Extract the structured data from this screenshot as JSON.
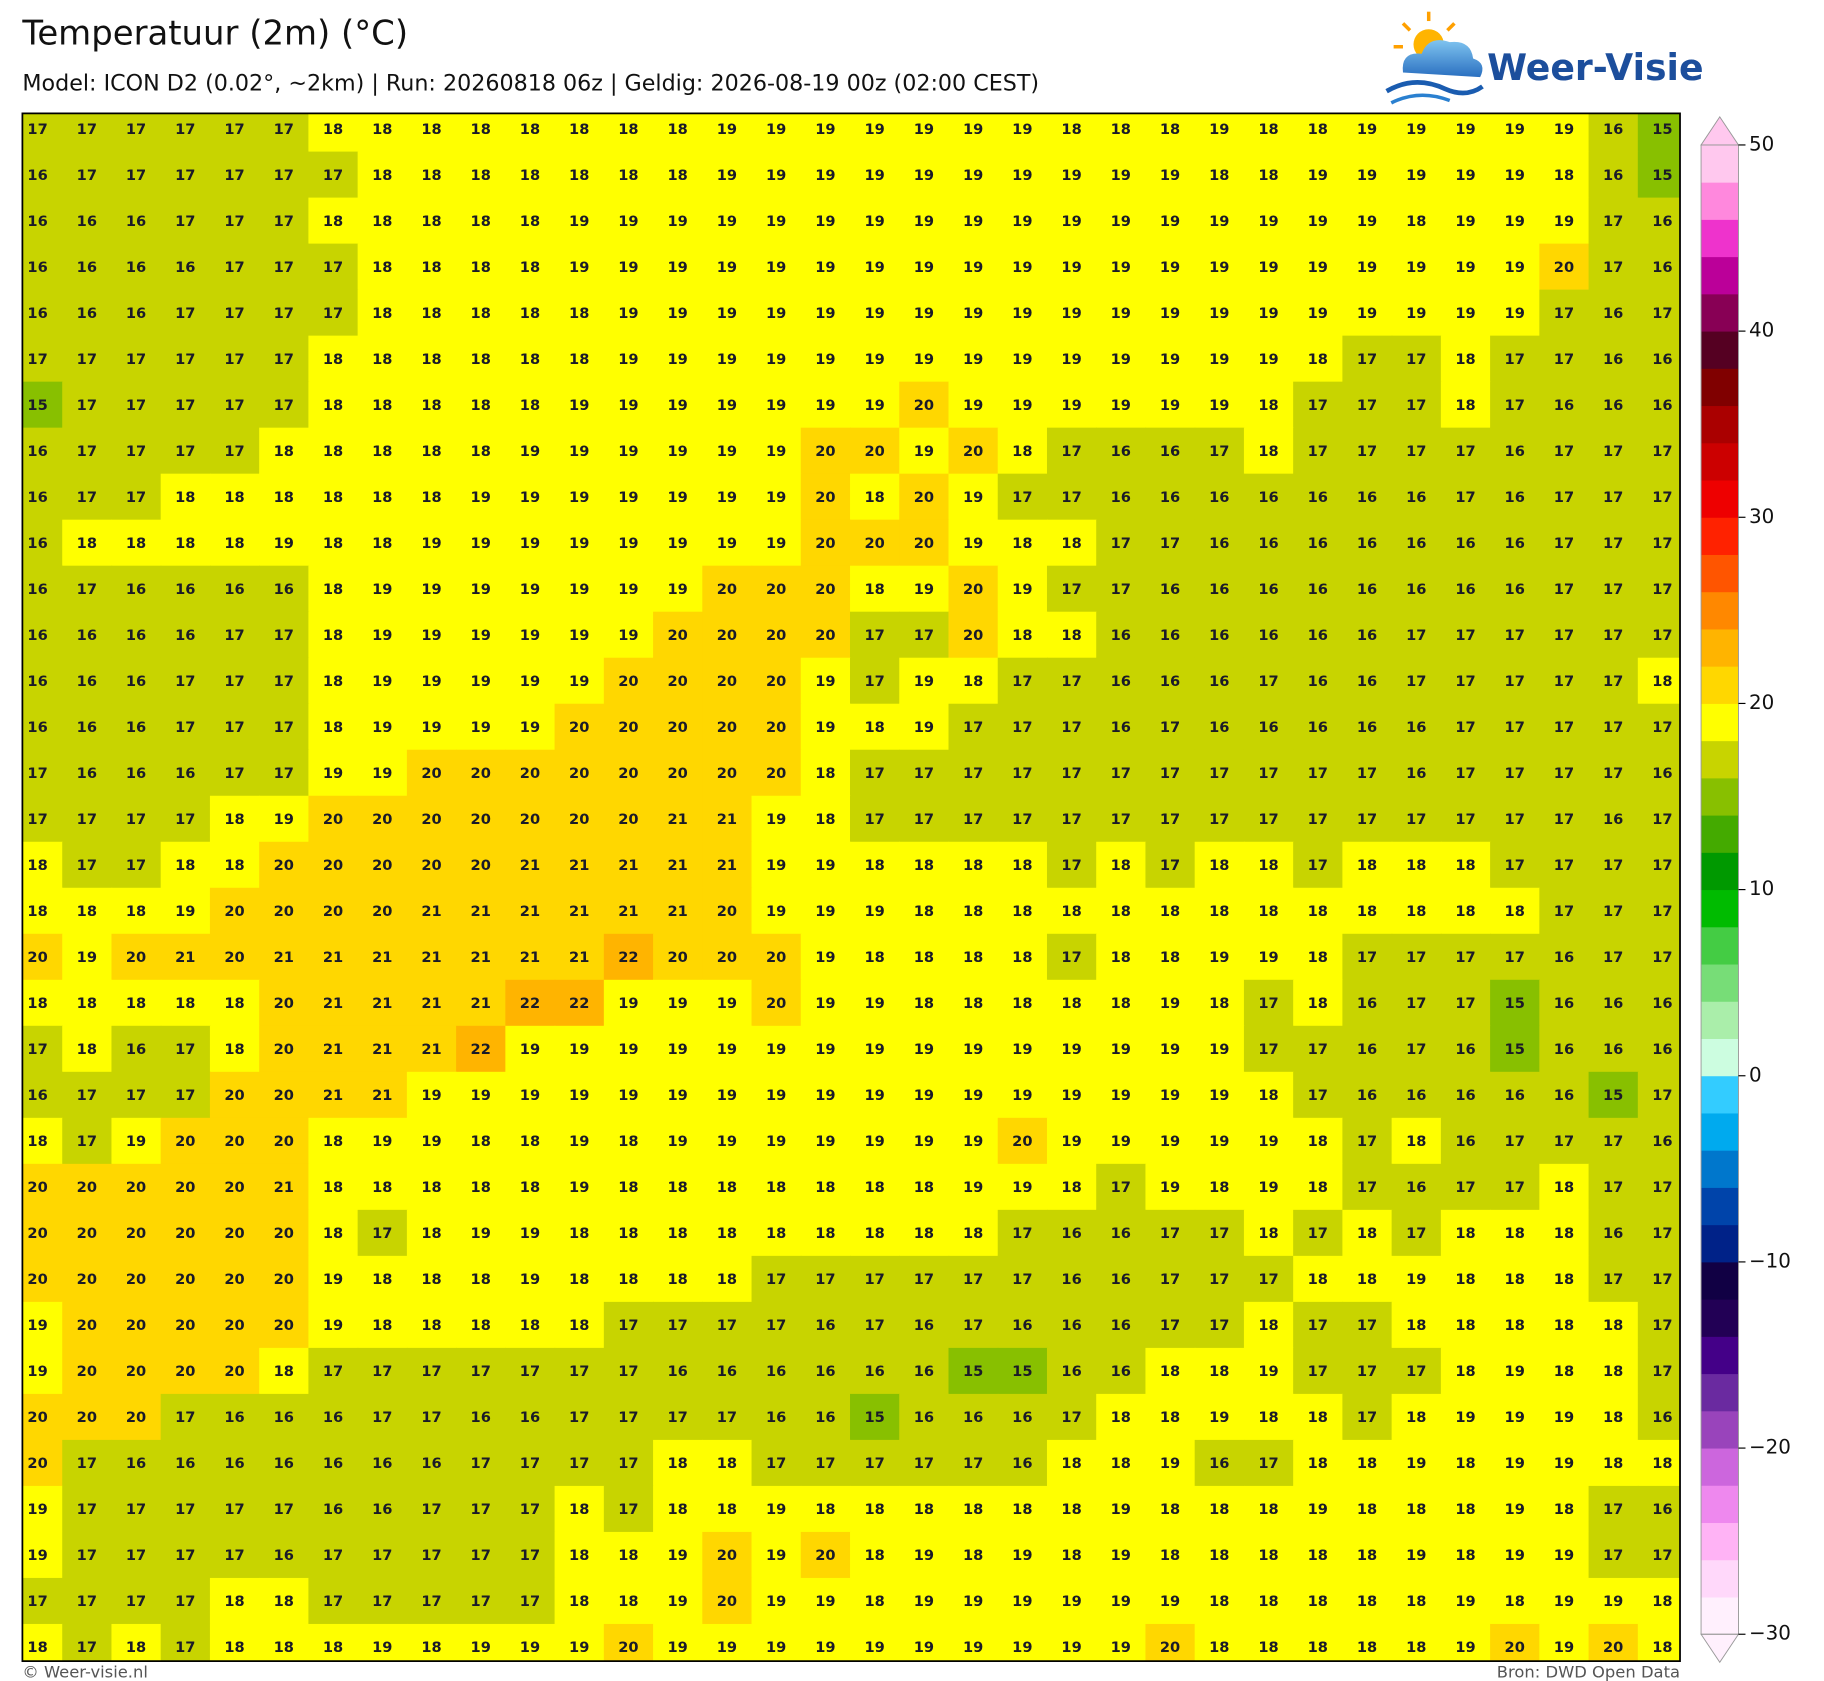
{
  "header": {
    "title": "Temperatuur (2m) (°C)",
    "subtitle": "Model: ICON D2 (0.02°, ~2km)  |  Run: 20260818 06z  |  Geldig: 2026-08-19 00z (02:00 CEST)"
  },
  "logo": "Weer-Visie",
  "grid": {
    "rows": [
      [
        17,
        17,
        17,
        17,
        17,
        17,
        18,
        18,
        18,
        18,
        18,
        18,
        18,
        18,
        19,
        19,
        19,
        19,
        19,
        19,
        19,
        18,
        18,
        18,
        19,
        18,
        18,
        19,
        19,
        19,
        19,
        19,
        16,
        15
      ],
      [
        16,
        17,
        17,
        17,
        17,
        17,
        17,
        18,
        18,
        18,
        18,
        18,
        18,
        18,
        19,
        19,
        19,
        19,
        19,
        19,
        19,
        19,
        19,
        19,
        18,
        18,
        19,
        19,
        19,
        19,
        19,
        18,
        16,
        15
      ],
      [
        16,
        16,
        16,
        17,
        17,
        17,
        18,
        18,
        18,
        18,
        18,
        19,
        19,
        19,
        19,
        19,
        19,
        19,
        19,
        19,
        19,
        19,
        19,
        19,
        19,
        19,
        19,
        19,
        18,
        19,
        19,
        19,
        17,
        16
      ],
      [
        16,
        16,
        16,
        16,
        17,
        17,
        17,
        18,
        18,
        18,
        18,
        19,
        19,
        19,
        19,
        19,
        19,
        19,
        19,
        19,
        19,
        19,
        19,
        19,
        19,
        19,
        19,
        19,
        19,
        19,
        19,
        20,
        17,
        16
      ],
      [
        16,
        16,
        16,
        17,
        17,
        17,
        17,
        18,
        18,
        18,
        18,
        18,
        19,
        19,
        19,
        19,
        19,
        19,
        19,
        19,
        19,
        19,
        19,
        19,
        19,
        19,
        19,
        19,
        19,
        19,
        19,
        17,
        16,
        17
      ],
      [
        17,
        17,
        17,
        17,
        17,
        17,
        18,
        18,
        18,
        18,
        18,
        18,
        19,
        19,
        19,
        19,
        19,
        19,
        19,
        19,
        19,
        19,
        19,
        19,
        19,
        19,
        18,
        17,
        17,
        18,
        17,
        17,
        16,
        16
      ],
      [
        15,
        17,
        17,
        17,
        17,
        17,
        18,
        18,
        18,
        18,
        18,
        19,
        19,
        19,
        19,
        19,
        19,
        19,
        20,
        19,
        19,
        19,
        19,
        19,
        19,
        18,
        17,
        17,
        17,
        18,
        17,
        16,
        16,
        16
      ],
      [
        16,
        17,
        17,
        17,
        17,
        18,
        18,
        18,
        18,
        18,
        19,
        19,
        19,
        19,
        19,
        19,
        20,
        20,
        19,
        20,
        18,
        17,
        16,
        16,
        17,
        18,
        17,
        17,
        17,
        17,
        16,
        17,
        17,
        17
      ],
      [
        16,
        17,
        17,
        18,
        18,
        18,
        18,
        18,
        18,
        19,
        19,
        19,
        19,
        19,
        19,
        19,
        20,
        18,
        20,
        19,
        17,
        17,
        16,
        16,
        16,
        16,
        16,
        16,
        16,
        17,
        16,
        17,
        17,
        17
      ],
      [
        16,
        18,
        18,
        18,
        18,
        19,
        18,
        18,
        19,
        19,
        19,
        19,
        19,
        19,
        19,
        19,
        20,
        20,
        20,
        19,
        18,
        18,
        17,
        17,
        16,
        16,
        16,
        16,
        16,
        16,
        16,
        17,
        17,
        17
      ],
      [
        16,
        17,
        16,
        16,
        16,
        16,
        18,
        19,
        19,
        19,
        19,
        19,
        19,
        19,
        20,
        20,
        20,
        18,
        19,
        20,
        19,
        17,
        17,
        16,
        16,
        16,
        16,
        16,
        16,
        16,
        16,
        17,
        17,
        17
      ],
      [
        16,
        16,
        16,
        16,
        17,
        17,
        18,
        19,
        19,
        19,
        19,
        19,
        19,
        20,
        20,
        20,
        20,
        17,
        17,
        20,
        18,
        18,
        16,
        16,
        16,
        16,
        16,
        16,
        17,
        17,
        17,
        17,
        17,
        17
      ],
      [
        16,
        16,
        16,
        17,
        17,
        17,
        18,
        19,
        19,
        19,
        19,
        19,
        20,
        20,
        20,
        20,
        19,
        17,
        19,
        18,
        17,
        17,
        16,
        16,
        16,
        17,
        16,
        16,
        17,
        17,
        17,
        17,
        17,
        18
      ],
      [
        16,
        16,
        16,
        17,
        17,
        17,
        18,
        19,
        19,
        19,
        19,
        20,
        20,
        20,
        20,
        20,
        19,
        18,
        19,
        17,
        17,
        17,
        16,
        17,
        16,
        16,
        16,
        16,
        16,
        17,
        17,
        17,
        17,
        17
      ],
      [
        17,
        16,
        16,
        16,
        17,
        17,
        19,
        19,
        20,
        20,
        20,
        20,
        20,
        20,
        20,
        20,
        18,
        17,
        17,
        17,
        17,
        17,
        17,
        17,
        17,
        17,
        17,
        17,
        16,
        17,
        17,
        17,
        17,
        16
      ],
      [
        17,
        17,
        17,
        17,
        18,
        19,
        20,
        20,
        20,
        20,
        20,
        20,
        20,
        21,
        21,
        19,
        18,
        17,
        17,
        17,
        17,
        17,
        17,
        17,
        17,
        17,
        17,
        17,
        17,
        17,
        17,
        17,
        16,
        17
      ],
      [
        18,
        17,
        17,
        18,
        18,
        20,
        20,
        20,
        20,
        20,
        21,
        21,
        21,
        21,
        21,
        19,
        19,
        18,
        18,
        18,
        18,
        17,
        18,
        17,
        18,
        18,
        17,
        18,
        18,
        18,
        17,
        17,
        17,
        17
      ],
      [
        18,
        18,
        18,
        19,
        20,
        20,
        20,
        20,
        21,
        21,
        21,
        21,
        21,
        21,
        20,
        19,
        19,
        19,
        18,
        18,
        18,
        18,
        18,
        18,
        18,
        18,
        18,
        18,
        18,
        18,
        18,
        17,
        17,
        17
      ],
      [
        20,
        19,
        20,
        21,
        20,
        21,
        21,
        21,
        21,
        21,
        21,
        21,
        22,
        20,
        20,
        20,
        19,
        18,
        18,
        18,
        18,
        17,
        18,
        18,
        19,
        19,
        18,
        17,
        17,
        17,
        17,
        16,
        17,
        17
      ],
      [
        18,
        18,
        18,
        18,
        18,
        20,
        21,
        21,
        21,
        21,
        22,
        22,
        19,
        19,
        19,
        20,
        19,
        19,
        18,
        18,
        18,
        18,
        18,
        19,
        18,
        17,
        18,
        16,
        17,
        17,
        15,
        16,
        16,
        16
      ],
      [
        17,
        18,
        16,
        17,
        18,
        20,
        21,
        21,
        21,
        22,
        19,
        19,
        19,
        19,
        19,
        19,
        19,
        19,
        19,
        19,
        19,
        19,
        19,
        19,
        19,
        17,
        17,
        16,
        17,
        16,
        15,
        16,
        16,
        16
      ],
      [
        16,
        17,
        17,
        17,
        20,
        20,
        21,
        21,
        19,
        19,
        19,
        19,
        19,
        19,
        19,
        19,
        19,
        19,
        19,
        19,
        19,
        19,
        19,
        19,
        19,
        18,
        17,
        16,
        16,
        16,
        16,
        16,
        15,
        17
      ],
      [
        18,
        17,
        19,
        20,
        20,
        20,
        18,
        19,
        19,
        18,
        18,
        19,
        18,
        19,
        19,
        19,
        19,
        19,
        19,
        19,
        20,
        19,
        19,
        19,
        19,
        19,
        18,
        17,
        18,
        16,
        17,
        17,
        17,
        16
      ],
      [
        20,
        20,
        20,
        20,
        20,
        21,
        18,
        18,
        18,
        18,
        18,
        19,
        18,
        18,
        18,
        18,
        18,
        18,
        18,
        19,
        19,
        18,
        17,
        19,
        18,
        19,
        18,
        17,
        16,
        17,
        17,
        18,
        17,
        17
      ],
      [
        20,
        20,
        20,
        20,
        20,
        20,
        18,
        17,
        18,
        19,
        19,
        18,
        18,
        18,
        18,
        18,
        18,
        18,
        18,
        18,
        17,
        16,
        16,
        17,
        17,
        18,
        17,
        18,
        17,
        18,
        18,
        18,
        16,
        17
      ],
      [
        20,
        20,
        20,
        20,
        20,
        20,
        19,
        18,
        18,
        18,
        19,
        18,
        18,
        18,
        18,
        17,
        17,
        17,
        17,
        17,
        17,
        16,
        16,
        17,
        17,
        17,
        18,
        18,
        19,
        18,
        18,
        18,
        17,
        17
      ],
      [
        19,
        20,
        20,
        20,
        20,
        20,
        19,
        18,
        18,
        18,
        18,
        18,
        17,
        17,
        17,
        17,
        16,
        17,
        16,
        17,
        16,
        16,
        16,
        17,
        17,
        18,
        17,
        17,
        18,
        18,
        18,
        18,
        18,
        17
      ],
      [
        19,
        20,
        20,
        20,
        20,
        18,
        17,
        17,
        17,
        17,
        17,
        17,
        17,
        16,
        16,
        16,
        16,
        16,
        16,
        15,
        15,
        16,
        16,
        18,
        18,
        19,
        17,
        17,
        17,
        18,
        19,
        18,
        18,
        17
      ],
      [
        20,
        20,
        20,
        17,
        16,
        16,
        16,
        17,
        17,
        16,
        16,
        17,
        17,
        17,
        17,
        16,
        16,
        15,
        16,
        16,
        16,
        17,
        18,
        18,
        19,
        18,
        18,
        17,
        18,
        19,
        19,
        19,
        18,
        16
      ],
      [
        20,
        17,
        16,
        16,
        16,
        16,
        16,
        16,
        16,
        17,
        17,
        17,
        17,
        18,
        18,
        17,
        17,
        17,
        17,
        17,
        16,
        18,
        18,
        19,
        16,
        17,
        18,
        18,
        19,
        18,
        19,
        19,
        18,
        18
      ],
      [
        19,
        17,
        17,
        17,
        17,
        17,
        16,
        16,
        17,
        17,
        17,
        18,
        17,
        18,
        18,
        19,
        18,
        18,
        18,
        18,
        18,
        18,
        19,
        18,
        18,
        18,
        19,
        18,
        18,
        18,
        19,
        18,
        17,
        16
      ],
      [
        19,
        17,
        17,
        17,
        17,
        16,
        17,
        17,
        17,
        17,
        17,
        18,
        18,
        19,
        20,
        19,
        20,
        18,
        19,
        18,
        19,
        18,
        19,
        18,
        18,
        18,
        18,
        18,
        19,
        18,
        19,
        19,
        17,
        17
      ],
      [
        17,
        17,
        17,
        17,
        18,
        18,
        17,
        17,
        17,
        17,
        17,
        18,
        18,
        19,
        20,
        19,
        19,
        18,
        19,
        19,
        19,
        19,
        19,
        19,
        18,
        18,
        18,
        18,
        18,
        19,
        18,
        19,
        19,
        18
      ],
      [
        18,
        17,
        18,
        17,
        18,
        18,
        18,
        19,
        18,
        19,
        19,
        19,
        20,
        19,
        19,
        19,
        19,
        19,
        19,
        19,
        19,
        19,
        19,
        20,
        18,
        18,
        18,
        18,
        18,
        19,
        20,
        19,
        20,
        18
      ]
    ]
  },
  "colorbar": {
    "lim": [
      -30,
      50
    ],
    "ticks": [
      {
        "value": -30,
        "label": "−30"
      },
      {
        "value": -20,
        "label": "−20"
      },
      {
        "value": -10,
        "label": "−10"
      },
      0,
      10,
      20,
      30,
      40,
      50
    ],
    "colors": [
      "#fff0fd",
      "#ffd8fa",
      "#ffb3f5",
      "#ee88ee",
      "#cc66dd",
      "#9944bb",
      "#6a2aa0",
      "#440088",
      "#220055",
      "#110044",
      "#002288",
      "#0044aa",
      "#0077cc",
      "#00aaee",
      "#33ccff",
      "#ccfde0",
      "#aaeeaa",
      "#77dd77",
      "#44cc44",
      "#00bb00",
      "#009900",
      "#44aa00",
      "#88c000",
      "#c8d400",
      "#ffff00",
      "#ffd700",
      "#ffb400",
      "#ff8800",
      "#ff5500",
      "#ff2200",
      "#ee0000",
      "#cc0000",
      "#aa0000",
      "#800000",
      "#550022",
      "#880055",
      "#bb0099",
      "#ee33cc",
      "#ff88dd",
      "#ffc8ee"
    ]
  },
  "footer": {
    "left": "© Weer-visie.nl",
    "right": "Bron: DWD Open Data"
  }
}
